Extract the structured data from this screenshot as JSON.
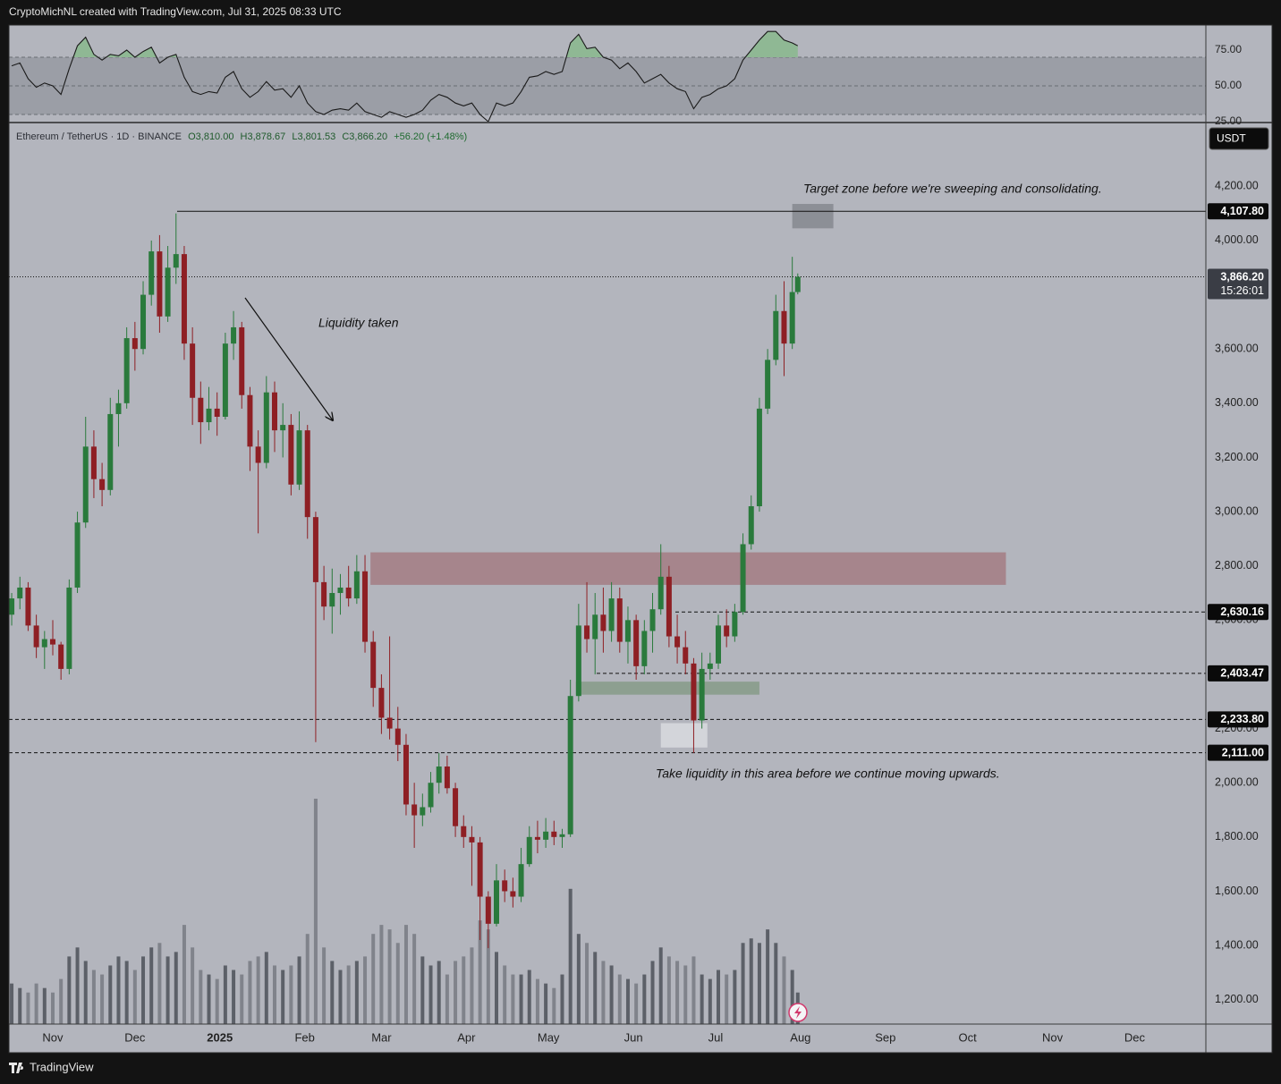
{
  "header": "CryptoMichNL created with TradingView.com, Jul 31, 2025 08:33 UTC",
  "footer": "TradingView",
  "chart_data": {
    "type": "candlestick",
    "legend": {
      "symbol": "Ethereum / TetherUS · 1D · BINANCE",
      "open": "O3,810.00",
      "high": "H3,878.67",
      "low": "L3,801.53",
      "close": "C3,866.20",
      "change": "+56.20 (+1.48%)"
    },
    "currency": "USDT",
    "up_color": "#2a7a3c",
    "down_color": "#8e1f24",
    "x": [
      -15,
      -12,
      -9,
      -6,
      -3,
      0,
      3,
      6,
      9,
      12,
      15,
      18,
      21,
      24,
      27,
      30,
      33,
      36,
      39,
      42,
      45,
      48,
      51,
      54,
      57,
      60,
      63,
      66,
      69,
      72,
      75,
      78,
      81,
      84,
      87,
      90,
      93,
      96,
      99,
      102,
      105,
      108,
      111,
      114,
      117,
      120,
      123,
      126,
      129,
      132,
      135,
      138,
      141,
      144,
      147,
      150,
      153,
      156,
      159,
      162,
      165,
      168,
      171,
      174,
      177,
      180,
      183,
      186,
      189,
      192,
      195,
      198,
      201,
      204,
      207,
      210,
      213,
      216,
      219,
      222,
      225,
      228,
      231,
      234,
      237,
      240,
      243,
      246,
      249,
      252,
      255,
      258,
      261,
      264,
      267,
      270,
      272
    ],
    "open": [
      2620,
      2680,
      2720,
      2580,
      2500,
      2530,
      2510,
      2420,
      2720,
      2960,
      3240,
      3120,
      3080,
      3360,
      3400,
      3640,
      3600,
      3800,
      3960,
      3720,
      3900,
      3950,
      3620,
      3420,
      3330,
      3380,
      3350,
      3620,
      3680,
      3430,
      3240,
      3180,
      3440,
      3300,
      3320,
      3100,
      3300,
      2980,
      2740,
      2650,
      2700,
      2720,
      2680,
      2780,
      2520,
      2350,
      2240,
      2200,
      2140,
      1920,
      1880,
      1910,
      2000,
      2060,
      1980,
      1840,
      1800,
      1780,
      1580,
      1480,
      1640,
      1600,
      1580,
      1700,
      1800,
      1790,
      1820,
      1800,
      1810,
      2320,
      2580,
      2530,
      2620,
      2560,
      2680,
      2520,
      2600,
      2430,
      2560,
      2640,
      2760,
      2540,
      2500,
      2440,
      2230,
      2420,
      2440,
      2580,
      2540,
      2630,
      2880,
      3020,
      3380,
      3560,
      3740,
      3620,
      3810
    ],
    "high": [
      2700,
      2760,
      2740,
      2620,
      2560,
      2600,
      2520,
      2750,
      3000,
      3350,
      3300,
      3180,
      3420,
      3450,
      3680,
      3700,
      3850,
      4000,
      4020,
      3980,
      4100,
      3980,
      3680,
      3480,
      3460,
      3440,
      3660,
      3740,
      3700,
      3460,
      3300,
      3500,
      3480,
      3400,
      3360,
      3370,
      3320,
      3000,
      2800,
      2790,
      2770,
      2800,
      2840,
      2840,
      2560,
      2400,
      2540,
      2280,
      2180,
      2000,
      1960,
      2040,
      2110,
      2100,
      2000,
      1880,
      1840,
      1800,
      1600,
      1700,
      1680,
      1650,
      1760,
      1840,
      1860,
      1870,
      1860,
      1830,
      2380,
      2660,
      2740,
      2700,
      2720,
      2740,
      2720,
      2650,
      2620,
      2600,
      2700,
      2880,
      2800,
      2620,
      2560,
      2460,
      2480,
      2480,
      2620,
      2640,
      2660,
      2920,
      3060,
      3420,
      3600,
      3800,
      3850,
      3940,
      3878.67
    ],
    "low": [
      2580,
      2640,
      2560,
      2460,
      2420,
      2470,
      2380,
      2400,
      2700,
      2940,
      3050,
      3020,
      3060,
      3240,
      3380,
      3520,
      3580,
      3760,
      3660,
      3700,
      3840,
      3560,
      3320,
      3250,
      3300,
      3280,
      3340,
      3560,
      3380,
      3150,
      2920,
      3160,
      3220,
      3200,
      3060,
      3080,
      2900,
      2150,
      2600,
      2550,
      2620,
      2650,
      2660,
      2480,
      2280,
      2180,
      2160,
      2080,
      1880,
      1760,
      1840,
      1890,
      1960,
      1960,
      1800,
      1760,
      1620,
      1420,
      1390,
      1470,
      1560,
      1540,
      1560,
      1690,
      1740,
      1760,
      1770,
      1760,
      1800,
      2300,
      2480,
      2400,
      2480,
      2520,
      2480,
      2440,
      2380,
      2400,
      2480,
      2620,
      2500,
      2440,
      2400,
      2110,
      2200,
      2380,
      2420,
      2500,
      2520,
      2620,
      2860,
      3000,
      3360,
      3540,
      3500,
      3600,
      3801.53
    ],
    "close": [
      2680,
      2720,
      2580,
      2500,
      2530,
      2510,
      2420,
      2720,
      2960,
      3240,
      3120,
      3080,
      3360,
      3400,
      3640,
      3600,
      3800,
      3960,
      3720,
      3900,
      3950,
      3620,
      3420,
      3330,
      3380,
      3350,
      3620,
      3680,
      3430,
      3240,
      3180,
      3440,
      3300,
      3320,
      3100,
      3300,
      2980,
      2740,
      2650,
      2700,
      2720,
      2680,
      2780,
      2520,
      2350,
      2240,
      2200,
      2140,
      1920,
      1880,
      1910,
      2000,
      2060,
      1980,
      1840,
      1800,
      1780,
      1580,
      1480,
      1640,
      1600,
      1580,
      1700,
      1800,
      1790,
      1820,
      1800,
      1810,
      2320,
      2580,
      2530,
      2620,
      2560,
      2680,
      2520,
      2600,
      2430,
      2560,
      2640,
      2760,
      2540,
      2500,
      2440,
      2230,
      2420,
      2440,
      2580,
      2540,
      2630,
      2880,
      3020,
      3380,
      3560,
      3740,
      3620,
      3810,
      3866.2
    ],
    "xlim": [
      -16,
      421
    ],
    "xticks": [
      {
        "value": 0,
        "label": "Nov"
      },
      {
        "value": 30,
        "label": "Dec"
      },
      {
        "value": 61,
        "label": "2025"
      },
      {
        "value": 92,
        "label": "Feb"
      },
      {
        "value": 120,
        "label": "Mar"
      },
      {
        "value": 151,
        "label": "Apr"
      },
      {
        "value": 181,
        "label": "May"
      },
      {
        "value": 212,
        "label": "Jun"
      },
      {
        "value": 242,
        "label": "Jul"
      },
      {
        "value": 273,
        "label": "Aug"
      },
      {
        "value": 304,
        "label": "Sep"
      },
      {
        "value": 334,
        "label": "Oct"
      },
      {
        "value": 365,
        "label": "Nov"
      },
      {
        "value": 395,
        "label": "Dec"
      }
    ],
    "ylim": [
      1110,
      4432
    ],
    "yticks": [
      {
        "value": 1200,
        "label": "1,200.00"
      },
      {
        "value": 1400,
        "label": "1,400.00"
      },
      {
        "value": 1600,
        "label": "1,600.00"
      },
      {
        "value": 1800,
        "label": "1,800.00"
      },
      {
        "value": 2000,
        "label": "2,000.00"
      },
      {
        "value": 2200,
        "label": "2,200.00"
      },
      {
        "value": 2400,
        "label": "2,400.00"
      },
      {
        "value": 2600,
        "label": "2,600.00"
      },
      {
        "value": 2800,
        "label": "2,800.00"
      },
      {
        "value": 3000,
        "label": "3,000.00"
      },
      {
        "value": 3200,
        "label": "3,200.00"
      },
      {
        "value": 3400,
        "label": "3,400.00"
      },
      {
        "value": 3600,
        "label": "3,600.00"
      },
      {
        "value": 4000,
        "label": "4,000.00"
      },
      {
        "value": 4200,
        "label": "4,200.00"
      }
    ],
    "levels": [
      {
        "value": 4107.8,
        "label": "4,107.80",
        "style": "solid"
      },
      {
        "value": 3866.2,
        "label": "3,866.20",
        "style": "dotted",
        "countdown": "15:26:01"
      },
      {
        "value": 2630.16,
        "label": "2,630.16",
        "style": "dashed"
      },
      {
        "value": 2403.47,
        "label": "2,403.47",
        "style": "dashed"
      },
      {
        "value": 2233.8,
        "label": "2,233.80",
        "style": "dashed"
      },
      {
        "value": 2111,
        "label": "2,111.00",
        "style": "dashed"
      }
    ],
    "zones": [
      {
        "x": [
          116,
          348
        ],
        "y": [
          2730,
          2850
        ],
        "color": "#a6858c"
      },
      {
        "x": [
          191,
          258
        ],
        "y": [
          2325,
          2373
        ],
        "color": "#8d9f90"
      },
      {
        "x": [
          222,
          239
        ],
        "y": [
          2130,
          2220
        ],
        "color": "#d3d5da"
      },
      {
        "x": [
          270,
          285
        ],
        "y": [
          4045,
          4135
        ],
        "color": "#8c8f96"
      }
    ],
    "annotations": [
      "Target zone before we're sweeping and consolidating.",
      "Liquidity taken",
      "Take liquidity in this area before we continue moving upwards."
    ],
    "volume": {
      "values": [
        18,
        16,
        14,
        18,
        16,
        14,
        20,
        30,
        34,
        28,
        24,
        22,
        26,
        30,
        28,
        24,
        30,
        34,
        36,
        30,
        32,
        44,
        34,
        24,
        22,
        20,
        26,
        24,
        22,
        28,
        30,
        32,
        26,
        24,
        26,
        30,
        40,
        100,
        34,
        28,
        24,
        26,
        28,
        30,
        40,
        44,
        42,
        36,
        44,
        40,
        30,
        26,
        28,
        22,
        28,
        30,
        34,
        46,
        42,
        32,
        26,
        22,
        22,
        24,
        20,
        18,
        16,
        22,
        60,
        40,
        36,
        32,
        28,
        26,
        22,
        20,
        18,
        22,
        28,
        34,
        30,
        28,
        26,
        30,
        22,
        20,
        24,
        22,
        24,
        36,
        38,
        36,
        42,
        36,
        30,
        24,
        14
      ],
      "up_color": "#5c6068",
      "down_color": "#80838b",
      "ylim": [
        0,
        100
      ]
    },
    "rsi": {
      "values": [
        64,
        66,
        55,
        49,
        52,
        50,
        44,
        62,
        78,
        84,
        72,
        68,
        72,
        71,
        75,
        70,
        74,
        77,
        66,
        70,
        72,
        56,
        46,
        44,
        46,
        45,
        56,
        60,
        48,
        42,
        46,
        53,
        47,
        48,
        42,
        50,
        38,
        32,
        30,
        33,
        34,
        33,
        38,
        32,
        30,
        28,
        32,
        30,
        28,
        30,
        33,
        40,
        44,
        42,
        38,
        36,
        38,
        30,
        25,
        38,
        36,
        38,
        46,
        56,
        57,
        60,
        58,
        60,
        80,
        86,
        76,
        77,
        70,
        68,
        62,
        66,
        60,
        52,
        55,
        58,
        52,
        48,
        46,
        34,
        42,
        44,
        48,
        50,
        55,
        68,
        75,
        82,
        88,
        88,
        82,
        80,
        78
      ],
      "color": "#1a1a1a",
      "overbought_fill": "#8fb894",
      "ylim": [
        25,
        92.5
      ],
      "yticks": [
        {
          "value": 25,
          "label": "25.00"
        },
        {
          "value": 50,
          "label": "50.00"
        },
        {
          "value": 75,
          "label": "75.00"
        }
      ],
      "band": [
        30,
        70
      ],
      "midline": 50
    }
  }
}
